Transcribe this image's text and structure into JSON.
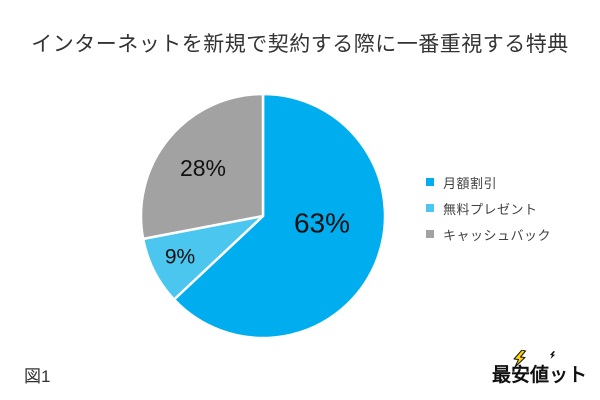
{
  "title": "インターネットを新規で契約する際に一番重視する特典",
  "figure_label": "図1",
  "logo": {
    "text": "最安値ット",
    "bolt_color": "#FFD500"
  },
  "chart_data": {
    "type": "pie",
    "title": "インターネットを新規で契約する際に一番重視する特典",
    "start_angle_deg": 0,
    "direction": "clockwise",
    "legend_position": "right",
    "slices": [
      {
        "label": "月額割引",
        "value": 63,
        "display": "63%",
        "color": "#00ADEE"
      },
      {
        "label": "無料プレゼント",
        "value": 9,
        "display": "9%",
        "color": "#4AC6EF"
      },
      {
        "label": "キャッシュバック",
        "value": 28,
        "display": "28%",
        "color": "#A2A2A2"
      }
    ]
  }
}
